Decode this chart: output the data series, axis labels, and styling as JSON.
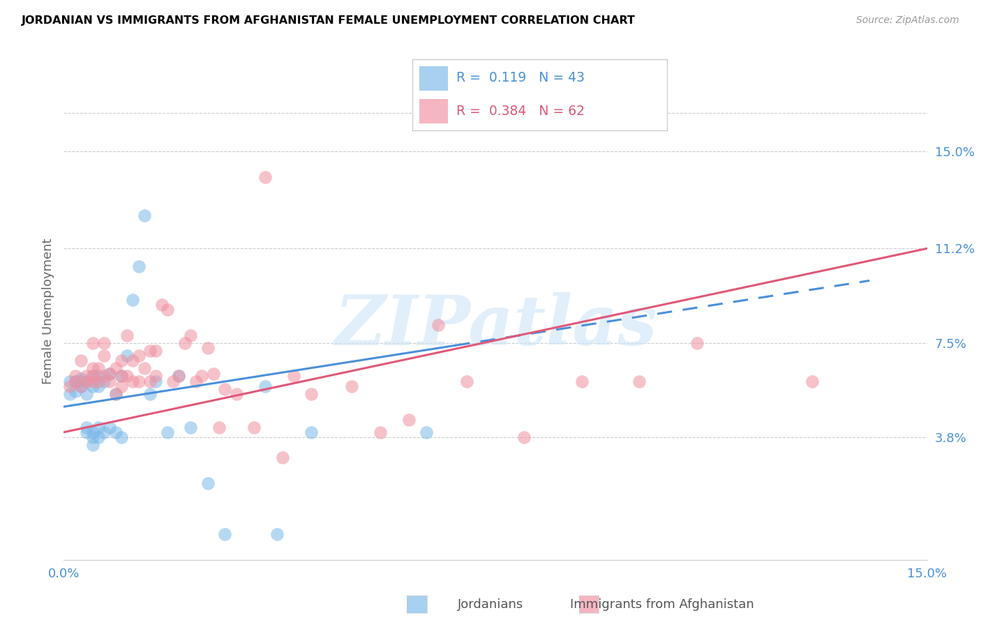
{
  "title": "JORDANIAN VS IMMIGRANTS FROM AFGHANISTAN FEMALE UNEMPLOYMENT CORRELATION CHART",
  "source": "Source: ZipAtlas.com",
  "ylabel": "Female Unemployment",
  "xlim": [
    0.0,
    0.15
  ],
  "ylim": [
    -0.01,
    0.185
  ],
  "plot_ylim": [
    0.0,
    0.165
  ],
  "right_yticks": [
    0.038,
    0.075,
    0.112,
    0.15
  ],
  "right_yticklabels": [
    "3.8%",
    "7.5%",
    "11.2%",
    "15.0%"
  ],
  "jordanians_color": "#7ab8e8",
  "afghanistan_color": "#f090a0",
  "line1_color": "#4a90d9",
  "line2_color": "#e05878",
  "watermark": "ZIPatlas",
  "legend_r1": "0.119",
  "legend_n1": "43",
  "legend_r2": "0.384",
  "legend_n2": "62",
  "jx": [
    0.001,
    0.001,
    0.002,
    0.002,
    0.003,
    0.003,
    0.003,
    0.004,
    0.004,
    0.004,
    0.004,
    0.005,
    0.005,
    0.005,
    0.005,
    0.005,
    0.006,
    0.006,
    0.006,
    0.006,
    0.007,
    0.007,
    0.008,
    0.008,
    0.009,
    0.009,
    0.01,
    0.01,
    0.011,
    0.012,
    0.013,
    0.014,
    0.015,
    0.016,
    0.018,
    0.02,
    0.022,
    0.025,
    0.028,
    0.035,
    0.037,
    0.043,
    0.063
  ],
  "jy": [
    0.055,
    0.06,
    0.056,
    0.06,
    0.058,
    0.06,
    0.061,
    0.04,
    0.042,
    0.055,
    0.06,
    0.035,
    0.038,
    0.04,
    0.058,
    0.062,
    0.038,
    0.042,
    0.058,
    0.062,
    0.04,
    0.06,
    0.042,
    0.063,
    0.04,
    0.055,
    0.038,
    0.062,
    0.07,
    0.092,
    0.105,
    0.125,
    0.055,
    0.06,
    0.04,
    0.062,
    0.042,
    0.02,
    0.0,
    0.058,
    0.0,
    0.04,
    0.04
  ],
  "ax": [
    0.001,
    0.002,
    0.002,
    0.003,
    0.003,
    0.004,
    0.004,
    0.005,
    0.005,
    0.005,
    0.005,
    0.006,
    0.006,
    0.007,
    0.007,
    0.007,
    0.008,
    0.008,
    0.009,
    0.009,
    0.01,
    0.01,
    0.01,
    0.011,
    0.011,
    0.012,
    0.012,
    0.013,
    0.013,
    0.014,
    0.015,
    0.015,
    0.016,
    0.016,
    0.017,
    0.018,
    0.019,
    0.02,
    0.021,
    0.022,
    0.023,
    0.024,
    0.025,
    0.026,
    0.027,
    0.028,
    0.03,
    0.033,
    0.035,
    0.038,
    0.04,
    0.043,
    0.05,
    0.055,
    0.06,
    0.065,
    0.07,
    0.08,
    0.09,
    0.1,
    0.11,
    0.13
  ],
  "ay": [
    0.058,
    0.06,
    0.062,
    0.058,
    0.068,
    0.06,
    0.062,
    0.06,
    0.062,
    0.065,
    0.075,
    0.06,
    0.065,
    0.062,
    0.07,
    0.075,
    0.06,
    0.063,
    0.055,
    0.065,
    0.058,
    0.062,
    0.068,
    0.062,
    0.078,
    0.06,
    0.068,
    0.06,
    0.07,
    0.065,
    0.06,
    0.072,
    0.062,
    0.072,
    0.09,
    0.088,
    0.06,
    0.062,
    0.075,
    0.078,
    0.06,
    0.062,
    0.073,
    0.063,
    0.042,
    0.057,
    0.055,
    0.042,
    0.14,
    0.03,
    0.062,
    0.055,
    0.058,
    0.04,
    0.045,
    0.082,
    0.06,
    0.038,
    0.06,
    0.06,
    0.075,
    0.06
  ]
}
